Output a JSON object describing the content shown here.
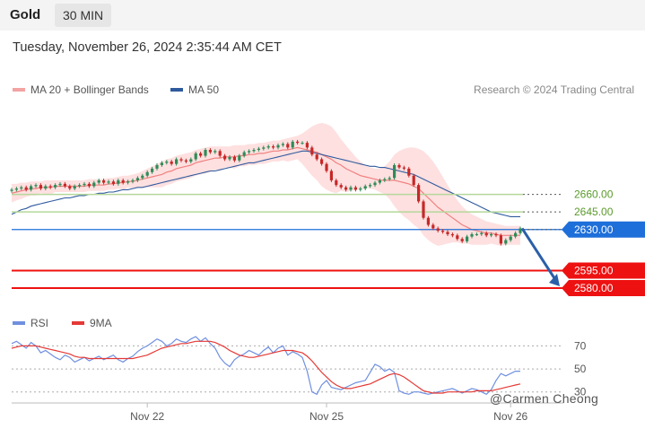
{
  "header": {
    "title": "Gold",
    "timeframe": "30 MIN"
  },
  "datetime": "Tuesday, November 26, 2024 2:35:44 AM CET",
  "legend": {
    "ma20_label": "MA 20 + Bollinger Bands",
    "ma50_label": "MA 50",
    "research": "Research © 2024 Trading Central",
    "rsi_label": "RSI",
    "ma9_label": "9MA"
  },
  "colors": {
    "ma20": "#f08080",
    "band": "#fdd5d5",
    "ma50": "#2f5a9e",
    "candle_up": "#2e8b57",
    "candle_down": "#c62828",
    "support_level": "#b5d89a",
    "current_level": "#1e6fd9",
    "target_level": "#ee1111",
    "arrow": "#2b5fa8",
    "rsi": "#6f8fdf",
    "rsi_ma": "#e53935"
  },
  "watermark": "@Carmen Cheong",
  "chart_data": [
    {
      "type": "candlestick",
      "title": "Gold",
      "timeframe": "30 MIN",
      "x_tick_labels": [
        "Nov 22",
        "Nov 25",
        "Nov 26"
      ],
      "ylim": [
        2567,
        2734
      ],
      "price_levels": [
        {
          "value": 2660.0,
          "label": "2660.00",
          "kind": "resistance"
        },
        {
          "value": 2645.0,
          "label": "2645.00",
          "kind": "resistance"
        },
        {
          "value": 2630.0,
          "label": "2630.00",
          "kind": "current"
        },
        {
          "value": 2595.0,
          "label": "2595.00",
          "kind": "target"
        },
        {
          "value": 2580.0,
          "label": "2580.00",
          "kind": "target"
        }
      ],
      "close": [
        2664,
        2665,
        2666,
        2664,
        2667,
        2668,
        2665,
        2667,
        2666,
        2668,
        2669,
        2667,
        2665,
        2667,
        2668,
        2669,
        2667,
        2670,
        2672,
        2670,
        2671,
        2669,
        2672,
        2670,
        2671,
        2672,
        2674,
        2676,
        2679,
        2682,
        2685,
        2687,
        2688,
        2686,
        2690,
        2689,
        2688,
        2690,
        2695,
        2693,
        2698,
        2696,
        2697,
        2693,
        2690,
        2692,
        2689,
        2693,
        2696,
        2697,
        2698,
        2699,
        2700,
        2701,
        2700,
        2702,
        2703,
        2700,
        2705,
        2704,
        2704,
        2700,
        2694,
        2690,
        2686,
        2680,
        2672,
        2668,
        2666,
        2664,
        2666,
        2664,
        2665,
        2667,
        2668,
        2670,
        2672,
        2673,
        2674,
        2685,
        2683,
        2682,
        2676,
        2668,
        2654,
        2640,
        2634,
        2631,
        2629,
        2628,
        2626,
        2625,
        2622,
        2620,
        2624,
        2626,
        2626,
        2627,
        2625,
        2626,
        2625,
        2618,
        2621,
        2624,
        2627,
        2631
      ],
      "ma20": [
        2661,
        2662,
        2663,
        2664,
        2665,
        2665,
        2666,
        2666,
        2666,
        2667,
        2667,
        2667,
        2667,
        2667,
        2667,
        2667,
        2668,
        2668,
        2668,
        2668,
        2669,
        2669,
        2670,
        2670,
        2671,
        2671,
        2672,
        2673,
        2674,
        2675,
        2676,
        2677,
        2679,
        2680,
        2682,
        2683,
        2684,
        2685,
        2687,
        2688,
        2689,
        2690,
        2691,
        2691,
        2692,
        2692,
        2692,
        2693,
        2693,
        2694,
        2694,
        2695,
        2695,
        2696,
        2697,
        2697,
        2698,
        2698,
        2699,
        2700,
        2699,
        2698,
        2697,
        2696,
        2694,
        2692,
        2690,
        2687,
        2685,
        2682,
        2680,
        2678,
        2676,
        2675,
        2674,
        2673,
        2672,
        2672,
        2672,
        2672,
        2671,
        2670,
        2669,
        2667,
        2665,
        2661,
        2657,
        2653,
        2649,
        2646,
        2643,
        2640,
        2637,
        2634,
        2632,
        2630,
        2629,
        2628,
        2627,
        2627,
        2626,
        2625,
        2625,
        2625,
        2625,
        2625
      ],
      "ma50": [
        2643,
        2645,
        2647,
        2648,
        2650,
        2651,
        2652,
        2653,
        2654,
        2655,
        2656,
        2657,
        2657,
        2658,
        2659,
        2659,
        2660,
        2660,
        2661,
        2661,
        2662,
        2662,
        2663,
        2664,
        2664,
        2665,
        2666,
        2666,
        2667,
        2668,
        2669,
        2670,
        2671,
        2672,
        2673,
        2674,
        2675,
        2676,
        2677,
        2678,
        2679,
        2680,
        2680,
        2681,
        2682,
        2683,
        2684,
        2685,
        2686,
        2687,
        2687,
        2688,
        2689,
        2690,
        2691,
        2692,
        2693,
        2694,
        2695,
        2696,
        2697,
        2697,
        2696,
        2695,
        2694,
        2693,
        2692,
        2691,
        2690,
        2689,
        2688,
        2687,
        2686,
        2685,
        2684,
        2684,
        2683,
        2683,
        2682,
        2681,
        2680,
        2679,
        2678,
        2677,
        2675,
        2673,
        2671,
        2669,
        2667,
        2665,
        2663,
        2661,
        2659,
        2657,
        2655,
        2653,
        2651,
        2649,
        2647,
        2645,
        2644,
        2643,
        2642,
        2641,
        2641,
        2641
      ],
      "bb_upper": [
        2669,
        2669,
        2670,
        2670,
        2671,
        2671,
        2671,
        2672,
        2672,
        2672,
        2672,
        2672,
        2672,
        2672,
        2672,
        2672,
        2673,
        2673,
        2673,
        2673,
        2674,
        2674,
        2675,
        2676,
        2676,
        2677,
        2678,
        2680,
        2682,
        2684,
        2686,
        2688,
        2690,
        2691,
        2693,
        2694,
        2695,
        2696,
        2698,
        2699,
        2700,
        2701,
        2701,
        2701,
        2701,
        2701,
        2702,
        2702,
        2702,
        2703,
        2703,
        2704,
        2704,
        2705,
        2706,
        2706,
        2707,
        2708,
        2709,
        2710,
        2712,
        2715,
        2718,
        2720,
        2721,
        2720,
        2718,
        2713,
        2707,
        2702,
        2697,
        2692,
        2688,
        2685,
        2683,
        2682,
        2682,
        2684,
        2688,
        2694,
        2697,
        2699,
        2700,
        2700,
        2699,
        2697,
        2693,
        2688,
        2682,
        2675,
        2668,
        2661,
        2655,
        2650,
        2646,
        2643,
        2641,
        2639,
        2637,
        2636,
        2635,
        2634,
        2633,
        2633,
        2633,
        2633
      ],
      "bb_lower": [
        2653,
        2655,
        2656,
        2658,
        2659,
        2659,
        2661,
        2660,
        2660,
        2662,
        2662,
        2662,
        2662,
        2662,
        2662,
        2662,
        2663,
        2663,
        2663,
        2663,
        2664,
        2664,
        2665,
        2664,
        2666,
        2665,
        2666,
        2666,
        2666,
        2666,
        2666,
        2666,
        2668,
        2669,
        2671,
        2672,
        2673,
        2674,
        2676,
        2677,
        2678,
        2679,
        2681,
        2681,
        2683,
        2683,
        2682,
        2684,
        2684,
        2685,
        2685,
        2686,
        2686,
        2687,
        2688,
        2688,
        2689,
        2688,
        2689,
        2690,
        2686,
        2681,
        2676,
        2672,
        2667,
        2664,
        2662,
        2661,
        2663,
        2662,
        2663,
        2664,
        2664,
        2665,
        2665,
        2664,
        2662,
        2660,
        2656,
        2650,
        2645,
        2641,
        2638,
        2634,
        2631,
        2625,
        2621,
        2618,
        2616,
        2617,
        2618,
        2619,
        2619,
        2618,
        2618,
        2617,
        2617,
        2617,
        2617,
        2618,
        2617,
        2616,
        2617,
        2617,
        2617,
        2617
      ]
    },
    {
      "type": "line",
      "title": "RSI",
      "x_tick_labels": [
        "Nov 22",
        "Nov 25",
        "Nov 26"
      ],
      "yticks": [
        30,
        50,
        70
      ],
      "ylim": [
        22,
        82
      ],
      "series": [
        {
          "name": "RSI",
          "values": [
            72,
            74,
            71,
            68,
            73,
            70,
            64,
            66,
            63,
            60,
            58,
            62,
            60,
            56,
            58,
            60,
            57,
            59,
            61,
            58,
            60,
            62,
            58,
            56,
            59,
            61,
            65,
            68,
            70,
            73,
            76,
            74,
            70,
            72,
            76,
            74,
            73,
            76,
            78,
            74,
            77,
            72,
            68,
            60,
            55,
            52,
            58,
            61,
            63,
            66,
            64,
            62,
            66,
            69,
            64,
            68,
            70,
            62,
            65,
            63,
            60,
            48,
            30,
            28,
            36,
            40,
            34,
            33,
            32,
            34,
            36,
            38,
            39,
            40,
            47,
            54,
            52,
            48,
            50,
            47,
            31,
            29,
            28,
            30,
            30,
            29,
            28,
            29,
            30,
            31,
            32,
            33,
            31,
            29,
            31,
            33,
            32,
            30,
            28,
            32,
            40,
            46,
            44,
            46,
            48,
            48
          ]
        },
        {
          "name": "9MA",
          "values": [
            68,
            69,
            70,
            70,
            70,
            70,
            69,
            68,
            67,
            66,
            65,
            64,
            63,
            61,
            60,
            60,
            59,
            59,
            59,
            59,
            59,
            59,
            59,
            59,
            59,
            59,
            60,
            61,
            62,
            64,
            66,
            68,
            69,
            70,
            71,
            72,
            72,
            73,
            74,
            74,
            74,
            74,
            73,
            71,
            69,
            66,
            64,
            62,
            61,
            60,
            60,
            61,
            62,
            63,
            64,
            65,
            66,
            66,
            66,
            65,
            64,
            61,
            57,
            52,
            47,
            43,
            39,
            36,
            34,
            33,
            33,
            34,
            35,
            36,
            37,
            39,
            41,
            43,
            45,
            46,
            45,
            43,
            40,
            37,
            34,
            31,
            30,
            29,
            29,
            29,
            30,
            30,
            30,
            30,
            30,
            30,
            31,
            31,
            31,
            31,
            32,
            33,
            34,
            35,
            36,
            37
          ]
        }
      ]
    }
  ]
}
